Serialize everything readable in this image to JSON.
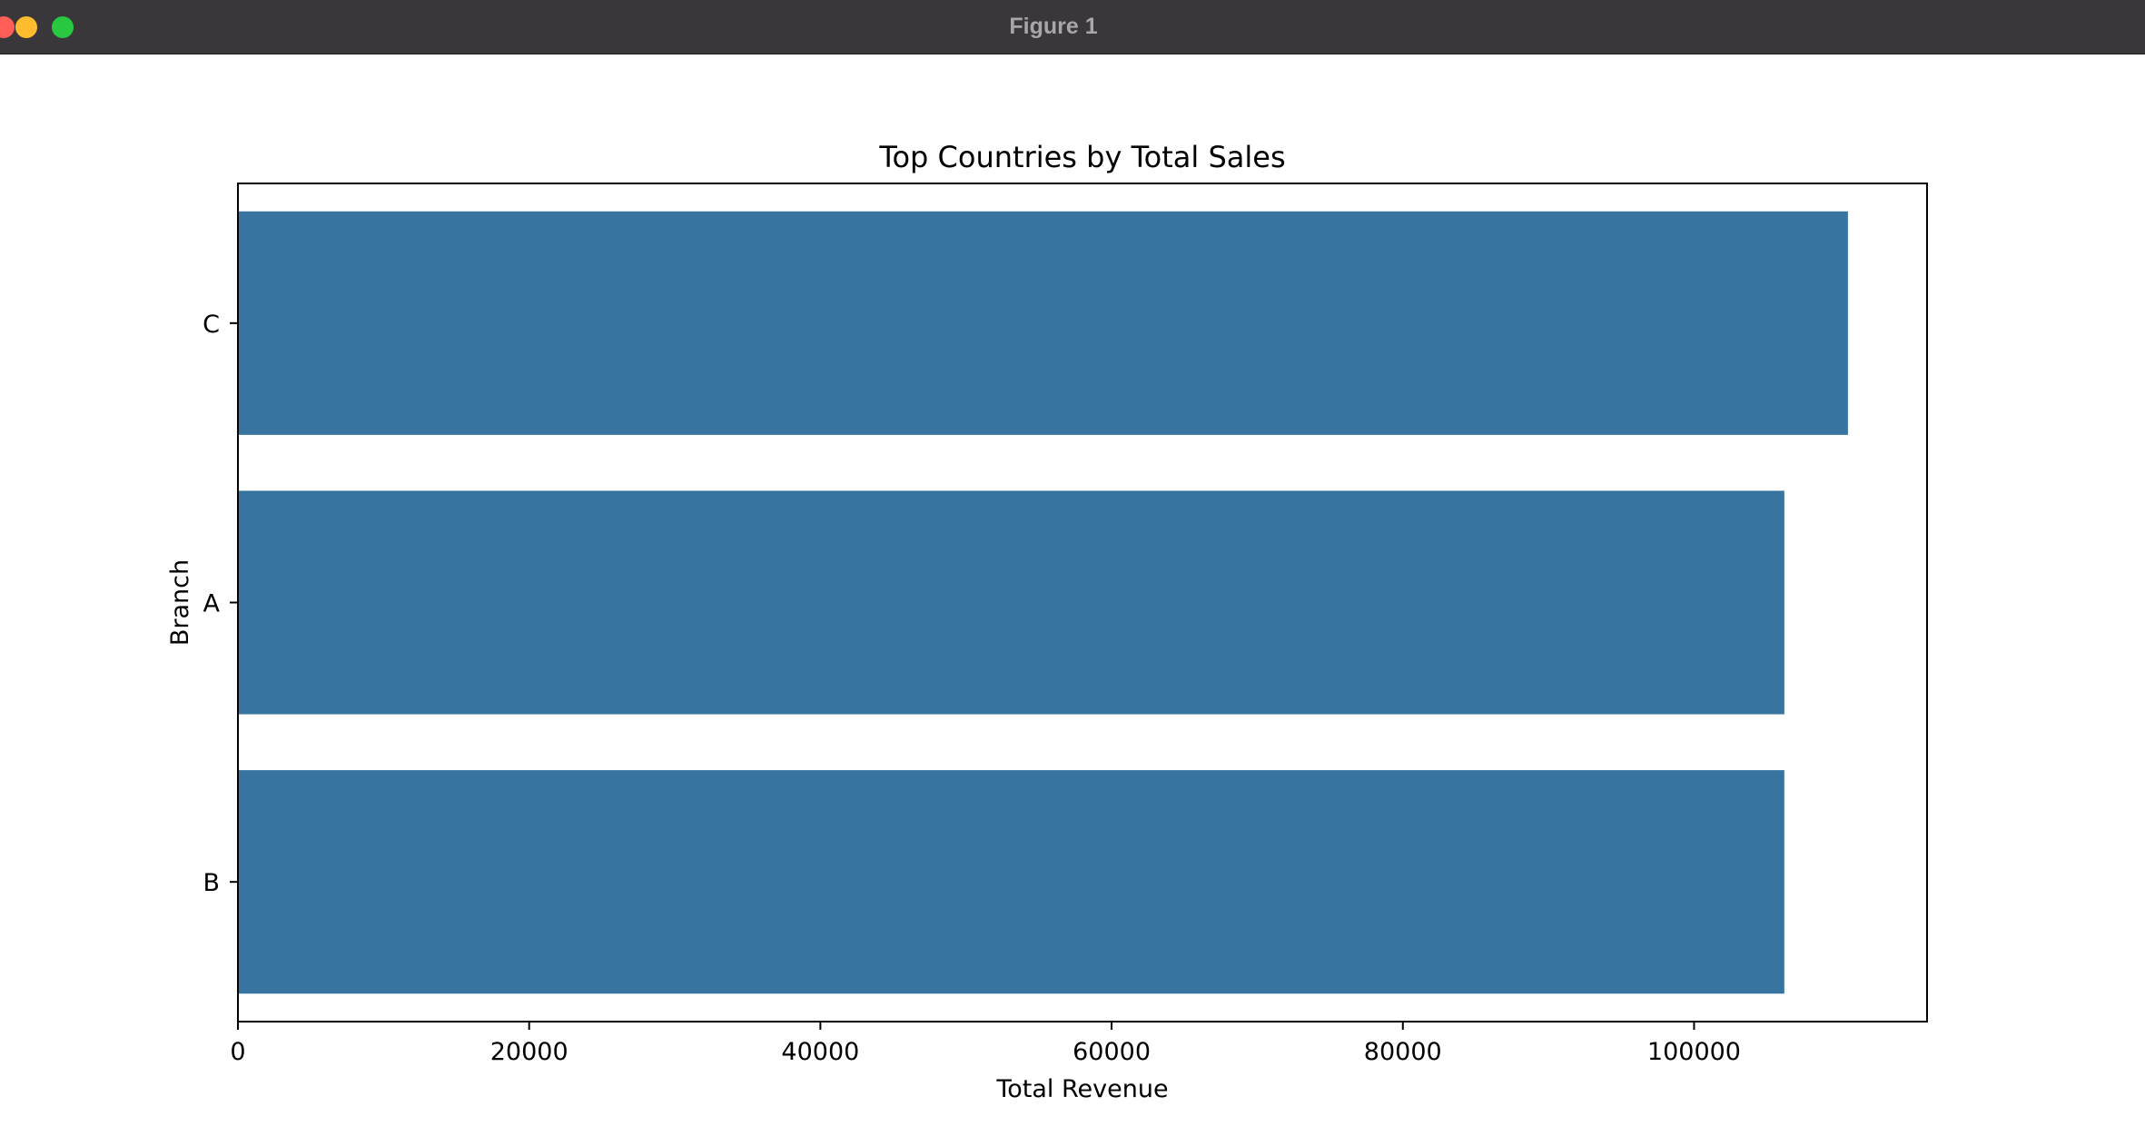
{
  "window": {
    "title": "Figure 1",
    "controls": {
      "close_color": "#ff5f57",
      "minimize_color": "#febc2e",
      "zoom_color": "#28c840"
    }
  },
  "chart_data": {
    "type": "bar",
    "orientation": "horizontal",
    "title": "Top Countries by Total Sales",
    "xlabel": "Total Revenue",
    "ylabel": "Branch",
    "categories": [
      "C",
      "A",
      "B"
    ],
    "values": [
      110568,
      106200,
      106198
    ],
    "xlim": [
      0,
      116000
    ],
    "xticks": [
      0,
      20000,
      40000,
      60000,
      80000,
      100000
    ],
    "xtick_labels": [
      "0",
      "20000",
      "40000",
      "60000",
      "80000",
      "100000"
    ],
    "bar_color": "#3775a0",
    "grid": false,
    "legend": "none"
  }
}
